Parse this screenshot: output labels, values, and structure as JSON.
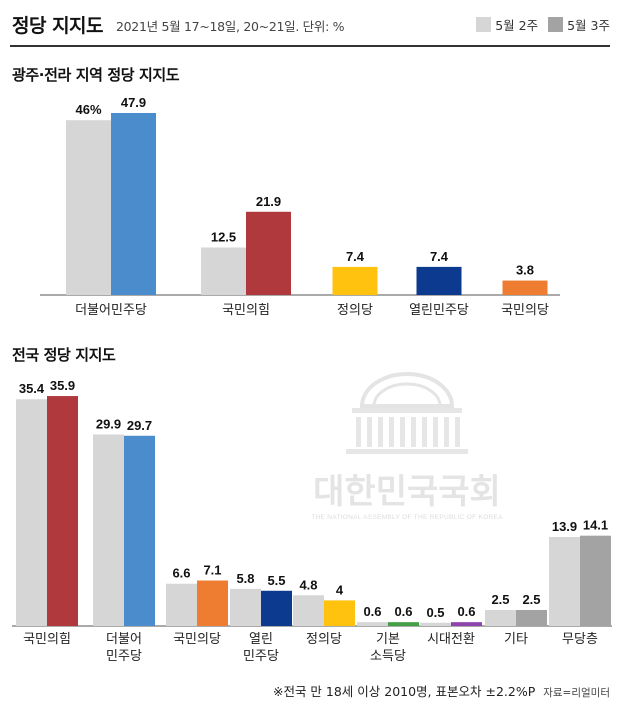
{
  "header": {
    "title": "정당 지지도",
    "subtitle": "2021년 5월 17~18일, 20~21일. 단위: %"
  },
  "legend": [
    {
      "label": "5월 2주",
      "color": "#d6d6d6"
    },
    {
      "label": "5월 3주",
      "color": "#a3a3a3"
    }
  ],
  "watermark": {
    "text": "대한민국국회",
    "subtext": "THE NATIONAL ASSEMBLY OF THE REPUBLIC OF KOREA"
  },
  "chart_data": [
    {
      "type": "bar",
      "title": "광주·전라 지역 정당 지지도",
      "categories": [
        "더불어민주당",
        "국민의힘",
        "정의당",
        "열린민주당",
        "국민의당"
      ],
      "series": [
        {
          "name": "5월 2주",
          "values": [
            46,
            12.5,
            null,
            null,
            null
          ],
          "labels": [
            "46%",
            "12.5",
            "",
            "",
            ""
          ]
        },
        {
          "name": "5월 3주",
          "values": [
            47.9,
            21.9,
            7.4,
            7.4,
            3.8
          ],
          "labels": [
            "47.9",
            "21.9",
            "7.4",
            "7.4",
            "3.8"
          ]
        }
      ],
      "party_colors": [
        "#4a8ccc",
        "#b0393d",
        "#ffc20e",
        "#0b3a8f",
        "#ee7d31"
      ],
      "ylim": [
        0,
        50
      ]
    },
    {
      "type": "bar",
      "title": "전국 정당 지지도",
      "categories": [
        [
          "국민의힘"
        ],
        [
          "더불어",
          "민주당"
        ],
        [
          "국민의당"
        ],
        [
          "열린",
          "민주당"
        ],
        [
          "정의당"
        ],
        [
          "기본",
          "소득당"
        ],
        [
          "시대전환"
        ],
        [
          "기타"
        ],
        [
          "무당층"
        ]
      ],
      "series": [
        {
          "name": "5월 2주",
          "values": [
            35.4,
            29.9,
            6.6,
            5.8,
            4.8,
            0.6,
            0.5,
            2.5,
            13.9
          ],
          "labels": [
            "35.4",
            "29.9",
            "6.6",
            "5.8",
            "4.8",
            "0.6",
            "0.5",
            "2.5",
            "13.9"
          ]
        },
        {
          "name": "5월 3주",
          "values": [
            35.9,
            29.7,
            7.1,
            5.5,
            4,
            0.6,
            0.6,
            2.5,
            14.1
          ],
          "labels": [
            "35.9",
            "29.7",
            "7.1",
            "5.5",
            "4",
            "0.6",
            "0.6",
            "2.5",
            "14.1"
          ]
        }
      ],
      "party_colors": [
        "#b0393d",
        "#4a8ccc",
        "#ee7d31",
        "#0b3a8f",
        "#ffc20e",
        "#43a047",
        "#8e44ad",
        "#a3a3a3",
        "#a3a3a3"
      ],
      "ylim": [
        0,
        37
      ]
    }
  ],
  "footnote": {
    "note": "※전국 만 18세 이상 2010명, 표본오차 ±2.2%P",
    "source": "자료=리얼미터"
  }
}
